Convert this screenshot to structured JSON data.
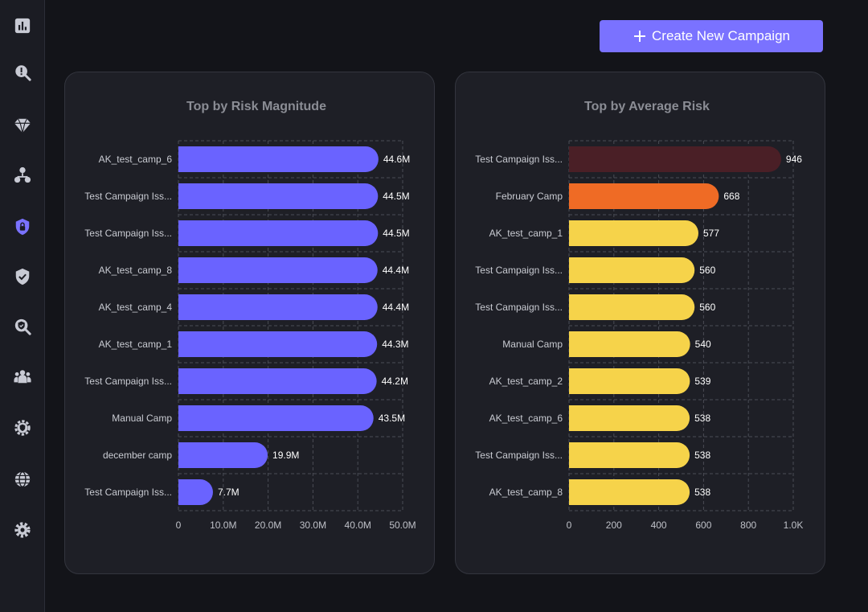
{
  "sidebar": {
    "items": [
      {
        "icon": "bar-chart-icon"
      },
      {
        "icon": "search-alert-icon"
      },
      {
        "icon": "diamond-icon"
      },
      {
        "icon": "hierarchy-icon"
      },
      {
        "icon": "shield-lock-icon",
        "active": true
      },
      {
        "icon": "shield-check-icon"
      },
      {
        "icon": "search-shield-icon"
      },
      {
        "icon": "users-icon"
      },
      {
        "icon": "gear-shield-icon"
      },
      {
        "icon": "globe-icon"
      },
      {
        "icon": "settings-icon"
      }
    ]
  },
  "header": {
    "create_button_label": "Create New Campaign"
  },
  "colors": {
    "accent": "#7a72ff",
    "bar_purple": "#6a63ff",
    "bar_dark_red": "#4a1f26",
    "bar_orange": "#ef6b25",
    "bar_yellow": "#f6d34a"
  },
  "chart_data": [
    {
      "type": "bar",
      "orientation": "horizontal",
      "title": "Top by Risk Magnitude",
      "categories": [
        "AK_test_camp_6",
        "Test Campaign Iss...",
        "Test Campaign Iss...",
        "AK_test_camp_8",
        "AK_test_camp_4",
        "AK_test_camp_1",
        "Test Campaign Iss...",
        "Manual Camp",
        "december camp",
        "Test Campaign Iss..."
      ],
      "values": [
        44.6,
        44.5,
        44.5,
        44.4,
        44.4,
        44.3,
        44.2,
        43.5,
        19.9,
        7.7
      ],
      "value_labels": [
        "44.6M",
        "44.5M",
        "44.5M",
        "44.4M",
        "44.4M",
        "44.3M",
        "44.2M",
        "43.5M",
        "19.9M",
        "7.7M"
      ],
      "unit": "M",
      "xlim": [
        0,
        50
      ],
      "xticks": [
        0,
        10,
        20,
        30,
        40,
        50
      ],
      "xtick_labels": [
        "0",
        "10.0M",
        "20.0M",
        "30.0M",
        "40.0M",
        "50.0M"
      ],
      "bar_colors": [
        "#6a63ff",
        "#6a63ff",
        "#6a63ff",
        "#6a63ff",
        "#6a63ff",
        "#6a63ff",
        "#6a63ff",
        "#6a63ff",
        "#6a63ff",
        "#6a63ff"
      ],
      "grid": true
    },
    {
      "type": "bar",
      "orientation": "horizontal",
      "title": "Top by Average Risk",
      "categories": [
        "Test Campaign Iss...",
        "February Camp",
        "AK_test_camp_1",
        "Test Campaign Iss...",
        "Test Campaign Iss...",
        "Manual Camp",
        "AK_test_camp_2",
        "AK_test_camp_6",
        "Test Campaign Iss...",
        "AK_test_camp_8"
      ],
      "values": [
        946,
        668,
        577,
        560,
        560,
        540,
        539,
        538,
        538,
        538
      ],
      "value_labels": [
        "946",
        "668",
        "577",
        "560",
        "560",
        "540",
        "539",
        "538",
        "538",
        "538"
      ],
      "xlim": [
        0,
        1000
      ],
      "xticks": [
        0,
        200,
        400,
        600,
        800,
        1000
      ],
      "xtick_labels": [
        "0",
        "200",
        "400",
        "600",
        "800",
        "1.0K"
      ],
      "bar_colors": [
        "#4a1f26",
        "#ef6b25",
        "#f6d34a",
        "#f6d34a",
        "#f6d34a",
        "#f6d34a",
        "#f6d34a",
        "#f6d34a",
        "#f6d34a",
        "#f6d34a"
      ],
      "grid": true
    }
  ]
}
